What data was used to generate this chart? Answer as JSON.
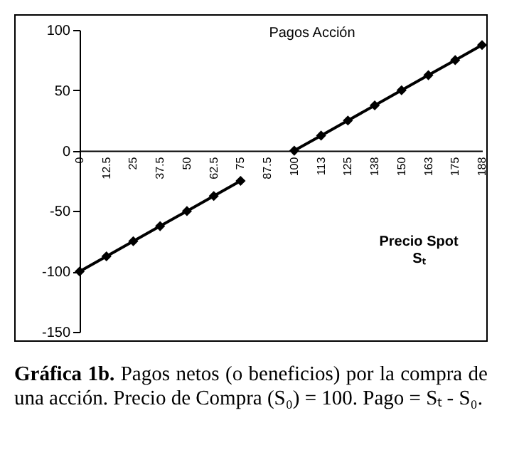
{
  "chart_data": {
    "type": "line",
    "title": "Pagos Acción",
    "xlabel": "Precio Spot Sₜ",
    "categories": [
      "0",
      "12.5",
      "25",
      "37.5",
      "50",
      "62.5",
      "75",
      "87.5",
      "100",
      "113",
      "125",
      "138",
      "150",
      "163",
      "175",
      "188"
    ],
    "series": [
      {
        "color": "#000000",
        "values": [
          -100,
          -87.5,
          -75,
          -62.5,
          -50,
          -37.5,
          -25,
          null,
          0,
          12.5,
          25,
          37.5,
          50,
          62.5,
          75,
          87.5
        ]
      }
    ],
    "ylim": [
      -150,
      100
    ],
    "yticks": [
      -150,
      -100,
      -50,
      0,
      50,
      100
    ],
    "grid": false,
    "legend": false,
    "marker": "diamond",
    "line_style": "solid",
    "annotations": [
      "Gráfica 1b.",
      "Pagos netos (o beneficios) por la compra de una acción. Precio de Compra (S₀) = 100. Pago = Sₜ - S₀."
    ]
  }
}
